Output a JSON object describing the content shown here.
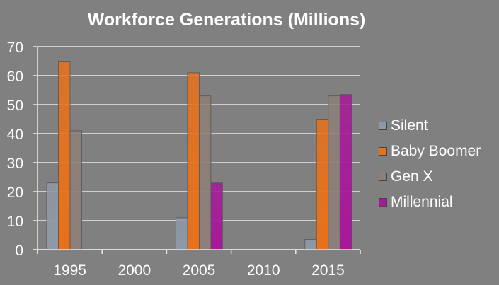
{
  "chart_data": {
    "type": "bar",
    "title": "Workforce Generations (Millions)",
    "xlabel": "",
    "ylabel": "",
    "categories": [
      "1995",
      "2000",
      "2005",
      "2010",
      "2015"
    ],
    "series": [
      {
        "name": "Silent",
        "color": "#8e99a6",
        "values": [
          23,
          null,
          11,
          null,
          3.5
        ]
      },
      {
        "name": "Baby Boomer",
        "color": "#e8711a",
        "values": [
          65,
          null,
          61,
          null,
          45
        ]
      },
      {
        "name": "Gen X",
        "color": "#8d7f79",
        "values": [
          41,
          null,
          53,
          null,
          53
        ]
      },
      {
        "name": "Millennial",
        "color": "#a8189a",
        "values": [
          null,
          null,
          23,
          null,
          53.5
        ]
      }
    ],
    "ylim": [
      0,
      70
    ],
    "yticks": [
      0,
      10,
      20,
      30,
      40,
      50,
      60,
      70
    ],
    "grid": true,
    "legend_position": "right"
  },
  "colors": {
    "background": "#808080",
    "text": "#ffffff",
    "grid": "#e8e8e8"
  }
}
